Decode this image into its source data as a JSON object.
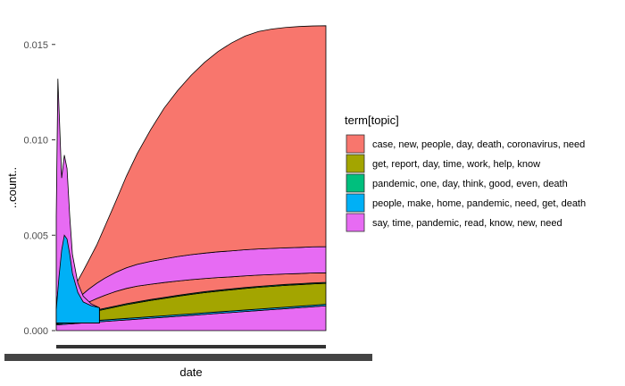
{
  "chart_data": {
    "type": "area",
    "stacked": true,
    "title": "",
    "xlabel": "date",
    "ylabel": "..count..",
    "ylim": [
      0,
      0.0163
    ],
    "yticks": [
      0.0,
      0.005,
      0.01,
      0.015
    ],
    "ytick_labels": [
      "0.000",
      "0.005",
      "0.010",
      "0.015"
    ],
    "x": [
      0.0,
      0.02,
      0.04,
      0.06,
      0.08,
      0.1,
      0.12,
      0.15,
      0.18,
      0.22,
      0.26,
      0.3,
      0.35,
      0.4,
      0.45,
      0.5,
      0.55,
      0.6,
      0.65,
      0.7,
      0.75,
      0.8,
      0.85,
      0.9,
      0.95,
      1.0
    ],
    "legend_title": "term[topic]",
    "legend_position": "right",
    "series": [
      {
        "name": "say, time, pandemic, read, know, new, need",
        "color": "#E76BF3",
        "values": [
          0.0003,
          0.00032,
          0.00034,
          0.00036,
          0.00038,
          0.0004,
          0.00042,
          0.00045,
          0.00048,
          0.00052,
          0.00056,
          0.0006,
          0.00065,
          0.0007,
          0.00075,
          0.0008,
          0.00085,
          0.0009,
          0.00095,
          0.001,
          0.00105,
          0.0011,
          0.00115,
          0.0012,
          0.00125,
          0.0013
        ]
      },
      {
        "name": "people, make, home, pandemic, need, get, death",
        "color": "#00B0F6",
        "values": [
          5e-05,
          6e-05,
          7e-05,
          8e-05,
          8e-05,
          8e-05,
          8e-05,
          8e-05,
          8e-05,
          8e-05,
          8e-05,
          8e-05,
          8e-05,
          8e-05,
          8e-05,
          8e-05,
          8e-05,
          8e-05,
          8e-05,
          8e-05,
          8e-05,
          8e-05,
          8e-05,
          8e-05,
          8e-05,
          8e-05
        ]
      },
      {
        "name": "get, report, day, time, work, help, know",
        "color": "#A3A500",
        "values": [
          0.0002,
          0.00024,
          0.00028,
          0.00032,
          0.00036,
          0.0004,
          0.00044,
          0.0005,
          0.00056,
          0.00064,
          0.00072,
          0.00078,
          0.00085,
          0.00091,
          0.00097,
          0.00102,
          0.00106,
          0.00109,
          0.00111,
          0.00113,
          0.00114,
          0.00114,
          0.00114,
          0.00113,
          0.00112,
          0.0011
        ]
      },
      {
        "name": "pandemic, one, day, think, good, even, death",
        "color": "#00BF7D",
        "values": [
          5e-05,
          5e-05,
          5e-05,
          5e-05,
          5e-05,
          5e-05,
          5e-05,
          5e-05,
          5e-05,
          5e-05,
          5e-05,
          5e-05,
          5e-05,
          5e-05,
          5e-05,
          5e-05,
          5e-05,
          5e-05,
          5e-05,
          5e-05,
          5e-05,
          5e-05,
          5e-05,
          5e-05,
          5e-05,
          5e-05
        ]
      },
      {
        "name": "case, new, people, day, death, coronavirus, need",
        "color": "#F8766D",
        "values": [
          5e-05,
          0.0001,
          0.00016,
          0.00024,
          0.00034,
          0.00042,
          0.0005,
          0.0006,
          0.00068,
          0.00076,
          0.0008,
          0.00082,
          0.0008,
          0.00078,
          0.00075,
          0.00072,
          0.00069,
          0.00066,
          0.00063,
          0.00061,
          0.00059,
          0.00057,
          0.00055,
          0.00053,
          0.00052,
          0.0005
        ]
      },
      {
        "name": "say, time, pandemic, read, know, new, need",
        "color": "#E76BF3",
        "values": [
          0.0001,
          0.00018,
          0.00026,
          0.00036,
          0.00046,
          0.00058,
          0.00068,
          0.0008,
          0.0009,
          0.001,
          0.00108,
          0.00114,
          0.0012,
          0.00124,
          0.00128,
          0.00131,
          0.00133,
          0.00135,
          0.00136,
          0.00137,
          0.00137,
          0.00137,
          0.00137,
          0.00137,
          0.00137,
          0.00137
        ]
      },
      {
        "name": "case, new, people, day, death, coronavirus, need",
        "color": "#F8766D",
        "values": [
          0.00015,
          0.0003,
          0.0005,
          0.0007,
          0.00095,
          0.0012,
          0.0015,
          0.002,
          0.0027,
          0.0037,
          0.0048,
          0.0058,
          0.0069,
          0.0079,
          0.0087,
          0.0094,
          0.01,
          0.0105,
          0.0109,
          0.0112,
          0.0114,
          0.0115,
          0.01155,
          0.01158,
          0.01158,
          0.01158
        ]
      }
    ],
    "early_peaks": [
      {
        "name": "people, make, home, pandemic, need, get, death",
        "color": "#00B0F6",
        "x": [
          0.0,
          0.01,
          0.02,
          0.03,
          0.04,
          0.05,
          0.06,
          0.08,
          0.1,
          0.13,
          0.16
        ],
        "values": [
          0.0011,
          0.0028,
          0.0042,
          0.005,
          0.0048,
          0.004,
          0.003,
          0.002,
          0.0015,
          0.0013,
          0.0012
        ]
      },
      {
        "name": "pandemic, one, day, think, good, even, death",
        "color": "#00BF7D",
        "x": [
          0.0,
          0.01,
          0.02,
          0.03,
          0.04,
          0.05,
          0.06,
          0.08,
          0.1,
          0.13,
          0.16
        ],
        "values": [
          0.0012,
          0.0026,
          0.0036,
          0.004,
          0.0039,
          0.0034,
          0.0026,
          0.0019,
          0.0015,
          0.0013,
          0.0012
        ]
      },
      {
        "name": "say, time, pandemic, read, know, new, need",
        "color": "#E76BF3",
        "x": [
          0.0,
          0.006,
          0.012,
          0.02,
          0.03,
          0.04,
          0.05,
          0.06,
          0.08,
          0.1,
          0.13,
          0.16
        ],
        "values": [
          0.006,
          0.0132,
          0.011,
          0.008,
          0.0092,
          0.0085,
          0.006,
          0.004,
          0.0025,
          0.0018,
          0.0014,
          0.0012
        ]
      }
    ]
  }
}
